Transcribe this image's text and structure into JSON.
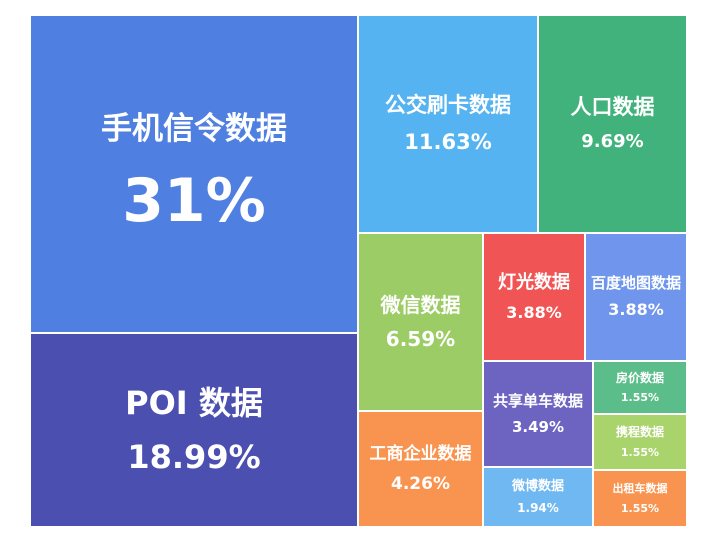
{
  "chart_data": {
    "type": "treemap",
    "items": [
      {
        "label": "手机信令数据",
        "value": 31,
        "value_text": "31%",
        "color": "#4F80E1"
      },
      {
        "label": "POI 数据",
        "value": 18.99,
        "value_text": "18.99%",
        "color": "#4B4FB0"
      },
      {
        "label": "公交刷卡数据",
        "value": 11.63,
        "value_text": "11.63%",
        "color": "#54B3F0"
      },
      {
        "label": "人口数据",
        "value": 9.69,
        "value_text": "9.69%",
        "color": "#41B27C"
      },
      {
        "label": "微信数据",
        "value": 6.59,
        "value_text": "6.59%",
        "color": "#9CCC65"
      },
      {
        "label": "灯光数据",
        "value": 3.88,
        "value_text": "3.88%",
        "color": "#F05454"
      },
      {
        "label": "百度地图数据",
        "value": 3.88,
        "value_text": "3.88%",
        "color": "#6F96EC"
      },
      {
        "label": "工商企业数据",
        "value": 4.26,
        "value_text": "4.26%",
        "color": "#F99450"
      },
      {
        "label": "共享单车数据",
        "value": 3.49,
        "value_text": "3.49%",
        "color": "#6C64C0"
      },
      {
        "label": "微博数据",
        "value": 1.94,
        "value_text": "1.94%",
        "color": "#6FB8F2"
      },
      {
        "label": "房价数据",
        "value": 1.55,
        "value_text": "1.55%",
        "color": "#5BBE8A"
      },
      {
        "label": "携程数据",
        "value": 1.55,
        "value_text": "1.55%",
        "color": "#A9D46C"
      },
      {
        "label": "出租车数据",
        "value": 1.55,
        "value_text": "1.55%",
        "color": "#F99450"
      }
    ]
  }
}
